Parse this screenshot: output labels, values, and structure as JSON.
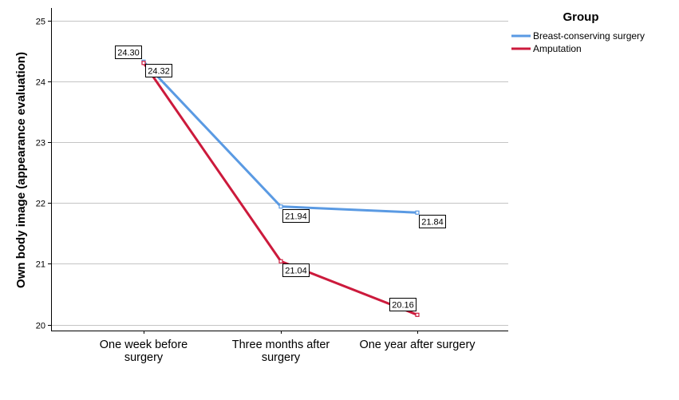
{
  "chart_data": {
    "type": "line",
    "categories": [
      "One week before surgery",
      "Three months after surgery",
      "One year after surgery"
    ],
    "category_lines": [
      [
        "One week before",
        "surgery"
      ],
      [
        "Three months after",
        "surgery"
      ],
      [
        "One year after surgery"
      ]
    ],
    "ylabel": "Own body image (appearance evaluation)",
    "xlabel": "",
    "ylim": [
      20,
      25
    ],
    "yticks": [
      "20",
      "21",
      "22",
      "23",
      "24",
      "25"
    ],
    "grid": true,
    "legend": {
      "title": "Group",
      "placement": "top-right"
    },
    "series": [
      {
        "name": "Breast-conserving surgery",
        "color": "#5a9ae3",
        "values": [
          24.32,
          21.94,
          21.84
        ],
        "labels": [
          "24.32",
          "21.94",
          "21.84"
        ]
      },
      {
        "name": "Amputation",
        "color": "#cc1a3c",
        "values": [
          24.3,
          21.04,
          20.16
        ],
        "labels": [
          "24.30",
          "21.04",
          "20.16"
        ]
      }
    ]
  }
}
